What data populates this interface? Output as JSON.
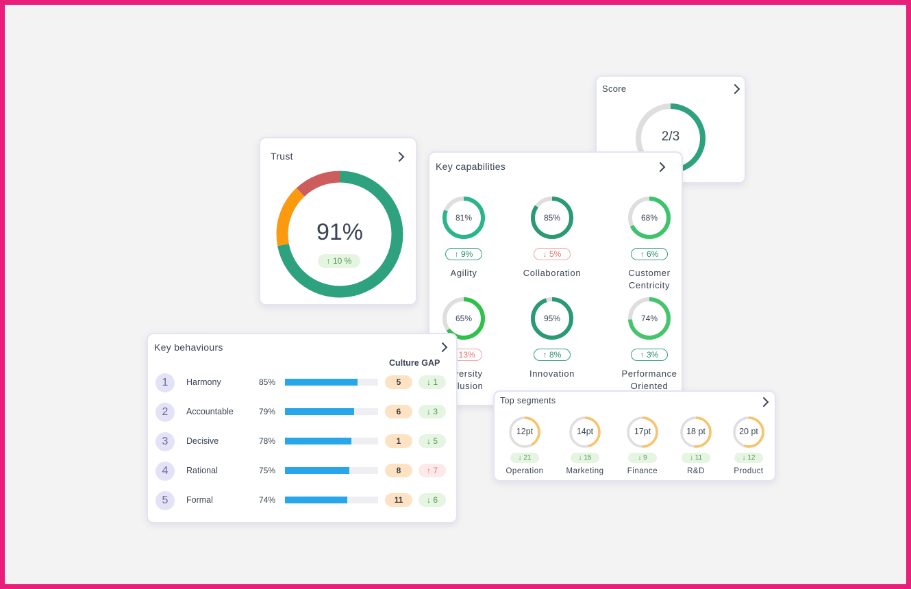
{
  "colors": {
    "frame": "#e91e7a",
    "green": "#2ea27e",
    "orange": "#fb9a0e",
    "red": "#cd5c5c",
    "blue": "#27a6ea",
    "gray": "#dedede",
    "segment_orange": "#f9c26b"
  },
  "score": {
    "title": "Score",
    "value": "2/3",
    "progress": 0.667
  },
  "trust": {
    "title": "Trust",
    "value": "91%",
    "change": "10 %",
    "change_direction": "up",
    "segments": [
      {
        "name": "good",
        "fraction": 0.72,
        "color": "#2ea27e"
      },
      {
        "name": "neutral",
        "fraction": 0.16,
        "color": "#fb9a0e"
      },
      {
        "name": "bad",
        "fraction": 0.12,
        "color": "#cd5c5c"
      }
    ]
  },
  "key_capabilities": {
    "title": "Key capabilities",
    "items": [
      {
        "label": "Agility",
        "value": "81%",
        "fraction": 0.81,
        "color": "#2ab58d",
        "change": "9%",
        "direction": "up"
      },
      {
        "label": "Collaboration",
        "value": "85%",
        "fraction": 0.85,
        "color": "#2a9a72",
        "change": "5%",
        "direction": "down"
      },
      {
        "label": "Customer\nCentricity",
        "value": "68%",
        "fraction": 0.68,
        "color": "#3cc36b",
        "change": "6%",
        "direction": "up"
      },
      {
        "label": "Diversity\nInclusion",
        "value": "65%",
        "fraction": 0.65,
        "color": "#2fc24a",
        "change": "13%",
        "direction": "down"
      },
      {
        "label": "Innovation",
        "value": "95%",
        "fraction": 0.95,
        "color": "#2a9a72",
        "change": "8%",
        "direction": "up"
      },
      {
        "label": "Performance\nOriented",
        "value": "74%",
        "fraction": 0.74,
        "color": "#45c46c",
        "change": "3%",
        "direction": "up"
      }
    ]
  },
  "key_behaviours": {
    "title": "Key behaviours",
    "gap_header": "Culture GAP",
    "rows": [
      {
        "rank": "1",
        "name": "Harmony",
        "pct": "85%",
        "fraction": 0.78,
        "gap": "5",
        "change": "1",
        "direction": "down"
      },
      {
        "rank": "2",
        "name": "Accountable",
        "pct": "79%",
        "fraction": 0.74,
        "gap": "6",
        "change": "3",
        "direction": "down"
      },
      {
        "rank": "3",
        "name": "Decisive",
        "pct": "78%",
        "fraction": 0.71,
        "gap": "1",
        "change": "5",
        "direction": "down"
      },
      {
        "rank": "4",
        "name": "Rational",
        "pct": "75%",
        "fraction": 0.69,
        "gap": "8",
        "change": "7",
        "direction": "up"
      },
      {
        "rank": "5",
        "name": "Formal",
        "pct": "74%",
        "fraction": 0.67,
        "gap": "11",
        "change": "6",
        "direction": "down"
      }
    ]
  },
  "top_segments": {
    "title": "Top segments",
    "items": [
      {
        "label": "Operation",
        "value": "12pt",
        "fraction": 0.42,
        "change": "21"
      },
      {
        "label": "Marketing",
        "value": "14pt",
        "fraction": 0.46,
        "change": "15"
      },
      {
        "label": "Finance",
        "value": "17pt",
        "fraction": 0.5,
        "change": "9"
      },
      {
        "label": "R&D",
        "value": "18 pt",
        "fraction": 0.52,
        "change": "11"
      },
      {
        "label": "Product",
        "value": "20 pt",
        "fraction": 0.55,
        "change": "12"
      }
    ]
  }
}
